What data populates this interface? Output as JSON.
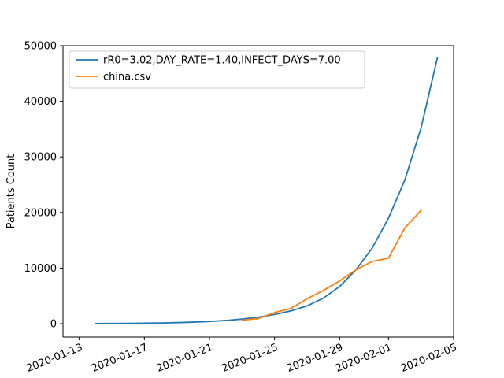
{
  "chart_data": {
    "type": "line",
    "title": "",
    "xlabel": "",
    "ylabel": "Patients Count",
    "x_ticks": [
      "2020-01-13",
      "2020-01-17",
      "2020-01-21",
      "2020-01-25",
      "2020-01-29",
      "2020-02-01",
      "2020-02-05"
    ],
    "y_ticks": [
      "0",
      "10000",
      "20000",
      "30000",
      "40000",
      "50000"
    ],
    "xlim": [
      "2020-01-12",
      "2020-02-05"
    ],
    "ylim": [
      -2400,
      50000
    ],
    "grid": false,
    "legend_position": "top-left",
    "series": [
      {
        "name": "rR0=3.02,DAY_RATE=1.40,INFECT_DAYS=7.00",
        "color": "#1f77b4",
        "points": [
          [
            "2020-01-14",
            30
          ],
          [
            "2020-01-15",
            45
          ],
          [
            "2020-01-16",
            65
          ],
          [
            "2020-01-17",
            90
          ],
          [
            "2020-01-18",
            130
          ],
          [
            "2020-01-19",
            190
          ],
          [
            "2020-01-20",
            280
          ],
          [
            "2020-01-21",
            400
          ],
          [
            "2020-01-22",
            580
          ],
          [
            "2020-01-23",
            830
          ],
          [
            "2020-01-24",
            1180
          ],
          [
            "2020-01-25",
            1650
          ],
          [
            "2020-01-26",
            2300
          ],
          [
            "2020-01-27",
            3200
          ],
          [
            "2020-01-28",
            4600
          ],
          [
            "2020-01-29",
            6700
          ],
          [
            "2020-01-30",
            9700
          ],
          [
            "2020-01-31",
            13600
          ],
          [
            "2020-02-01",
            19000
          ],
          [
            "2020-02-02",
            25800
          ],
          [
            "2020-02-03",
            35200
          ],
          [
            "2020-02-04",
            47800
          ]
        ]
      },
      {
        "name": "china.csv",
        "color": "#ff7f0e",
        "points": [
          [
            "2020-01-23",
            640
          ],
          [
            "2020-01-24",
            940
          ],
          [
            "2020-01-25",
            2000
          ],
          [
            "2020-01-26",
            2750
          ],
          [
            "2020-01-27",
            4500
          ],
          [
            "2020-01-28",
            6000
          ],
          [
            "2020-01-29",
            7700
          ],
          [
            "2020-01-30",
            9700
          ],
          [
            "2020-01-31",
            11200
          ],
          [
            "2020-02-01",
            11800
          ],
          [
            "2020-02-02",
            17200
          ],
          [
            "2020-02-03",
            20400
          ]
        ]
      }
    ]
  }
}
